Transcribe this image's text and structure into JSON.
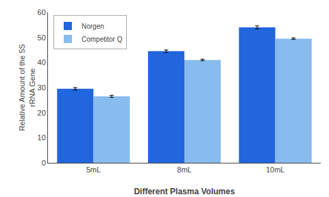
{
  "chart_data": {
    "type": "bar",
    "categories": [
      "5mL",
      "8mL",
      "10mL"
    ],
    "series": [
      {
        "name": "Norgen",
        "color": "#2266DD",
        "values": [
          29.5,
          44.5,
          54.0
        ],
        "errors": [
          0.5,
          0.5,
          0.6
        ]
      },
      {
        "name": "Competitor Q",
        "color": "#88BBEE",
        "values": [
          26.5,
          41.0,
          49.5
        ],
        "errors": [
          0.4,
          0.3,
          0.3
        ]
      }
    ],
    "xlabel": "Different Plasma Volumes",
    "ylabel": "Relative Amount of the 5S\nrRNA Gene",
    "ylim": [
      0,
      60
    ],
    "yticks": [
      0,
      10,
      20,
      30,
      40,
      50,
      60
    ],
    "grid": false,
    "legend": "upper left"
  }
}
